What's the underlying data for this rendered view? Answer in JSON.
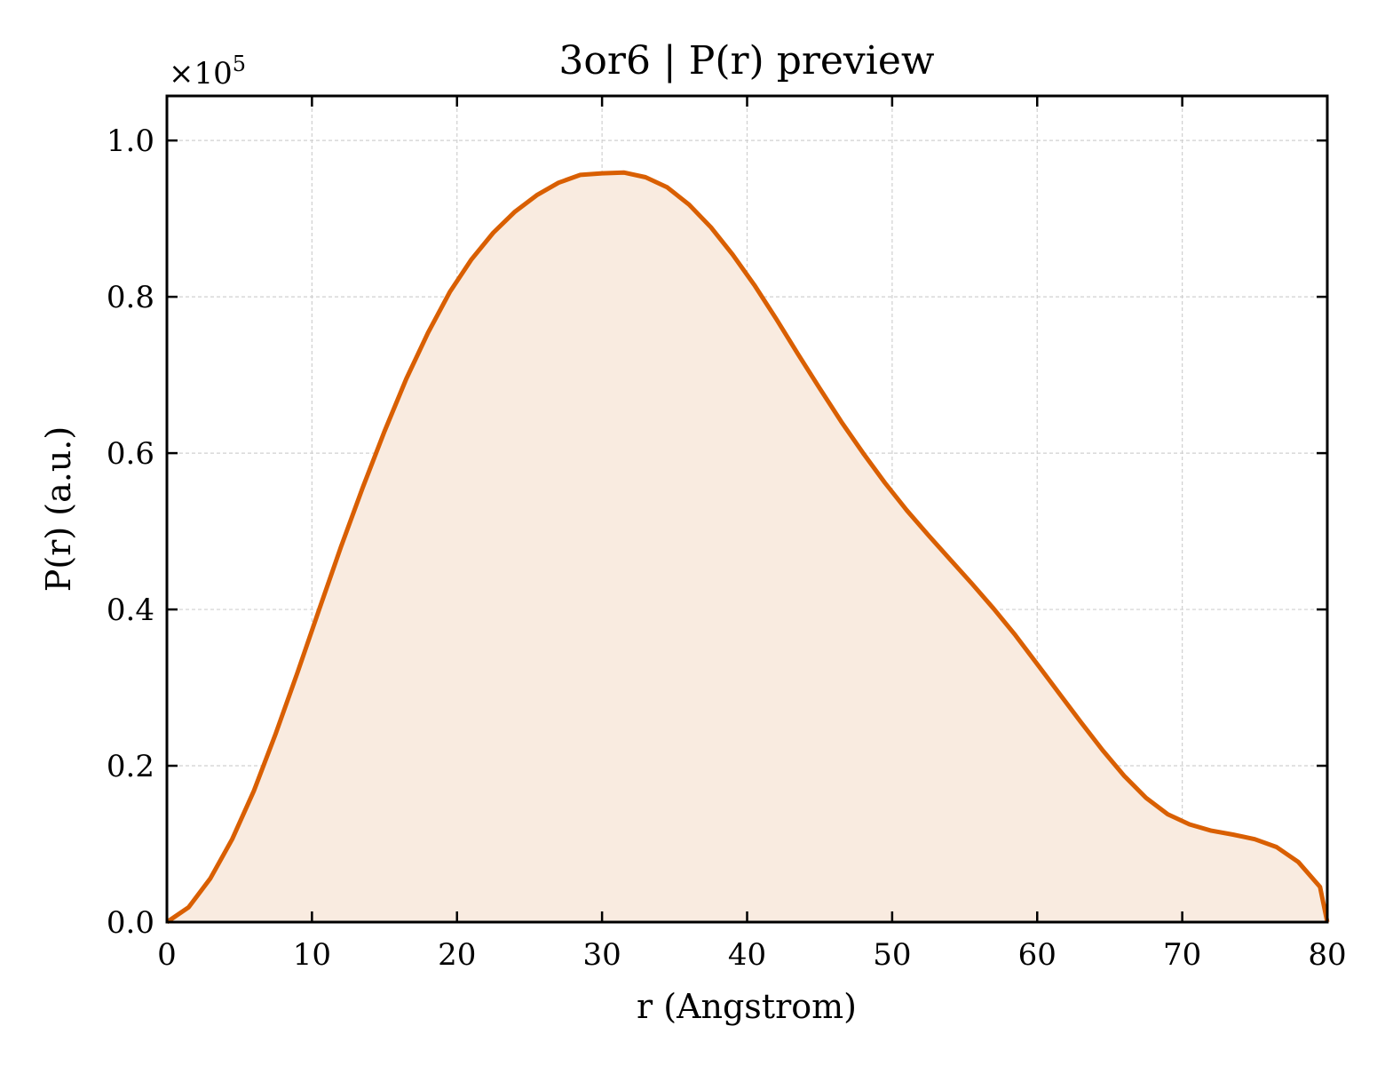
{
  "chart_data": {
    "type": "area",
    "title": "3or6 | P(r) preview",
    "xlabel": "r (Angstrom)",
    "ylabel": "P(r) (a.u.)",
    "y_multiplier_label": "×10",
    "y_multiplier_exponent": "5",
    "xlim": [
      0,
      80
    ],
    "ylim": [
      0,
      1.057
    ],
    "x_ticks": [
      0,
      10,
      20,
      30,
      40,
      50,
      60,
      70,
      80
    ],
    "x_tick_labels": [
      "0",
      "10",
      "20",
      "30",
      "40",
      "50",
      "60",
      "70",
      "80"
    ],
    "y_ticks": [
      0.0,
      0.2,
      0.4,
      0.6,
      0.8,
      1.0
    ],
    "y_tick_labels": [
      "0.0",
      "0.2",
      "0.4",
      "0.6",
      "0.8",
      "1.0"
    ],
    "grid": true,
    "colors": {
      "line": "#d95f02",
      "fill": "#f9ebe0",
      "grid": "#d0d0d0"
    },
    "series": [
      {
        "x": [
          0,
          1.5,
          3,
          4.5,
          6,
          7.5,
          9,
          10.5,
          12,
          13.5,
          15,
          16.5,
          18,
          19.5,
          21,
          22.5,
          24,
          25.5,
          27,
          28.5,
          30,
          31.5,
          33,
          34.5,
          36,
          37.5,
          39,
          40.5,
          42,
          43.5,
          45,
          46.5,
          48,
          49.5,
          51,
          52.5,
          54,
          55.5,
          57,
          58.5,
          60,
          61.5,
          63,
          64.5,
          66,
          67.5,
          69,
          70.5,
          72,
          73.5,
          75,
          76.5,
          78,
          79.5,
          80
        ],
        "y": [
          0.0,
          0.019,
          0.056,
          0.106,
          0.168,
          0.241,
          0.319,
          0.4,
          0.48,
          0.556,
          0.628,
          0.695,
          0.754,
          0.806,
          0.848,
          0.882,
          0.909,
          0.93,
          0.946,
          0.956,
          0.958,
          0.959,
          0.953,
          0.94,
          0.918,
          0.889,
          0.854,
          0.815,
          0.772,
          0.727,
          0.683,
          0.64,
          0.6,
          0.562,
          0.527,
          0.495,
          0.464,
          0.433,
          0.401,
          0.367,
          0.33,
          0.293,
          0.256,
          0.22,
          0.187,
          0.159,
          0.138,
          0.125,
          0.117,
          0.112,
          0.106,
          0.096,
          0.077,
          0.045,
          0.0
        ]
      }
    ]
  }
}
